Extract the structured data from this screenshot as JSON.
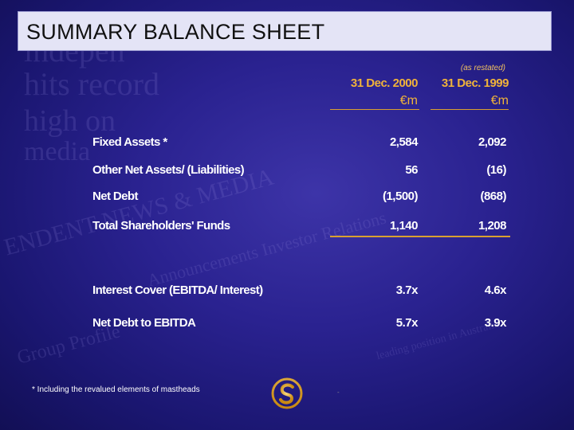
{
  "title": "SUMMARY BALANCE SHEET",
  "restated_note": "(as restated)",
  "columns": [
    {
      "date": "31 Dec. 2000",
      "unit": "€m"
    },
    {
      "date": "31 Dec. 1999",
      "unit": "€m"
    }
  ],
  "rows": [
    {
      "label": "Fixed Assets *",
      "v2000": "2,584",
      "v1999": "2,092"
    },
    {
      "label": "Other Net Assets/ (Liabilities)",
      "v2000": "56",
      "v1999": "(16)"
    },
    {
      "label": "Net Debt",
      "v2000": "(1,500)",
      "v1999": "(868)"
    },
    {
      "label": "Total Shareholders' Funds",
      "v2000": "1,140",
      "v1999": "1,208"
    },
    {
      "label": "Interest Cover (EBITDA/ Interest)",
      "v2000": "3.7x",
      "v1999": "4.6x"
    },
    {
      "label": "Net Debt to EBITDA",
      "v2000": "5.7x",
      "v1999": "3.9x"
    }
  ],
  "footnote": "*  Including the revalued elements of mastheads",
  "colors": {
    "accent": "#f0b33a",
    "background": "#2a2290",
    "title_bar": "#e4e4f6"
  }
}
